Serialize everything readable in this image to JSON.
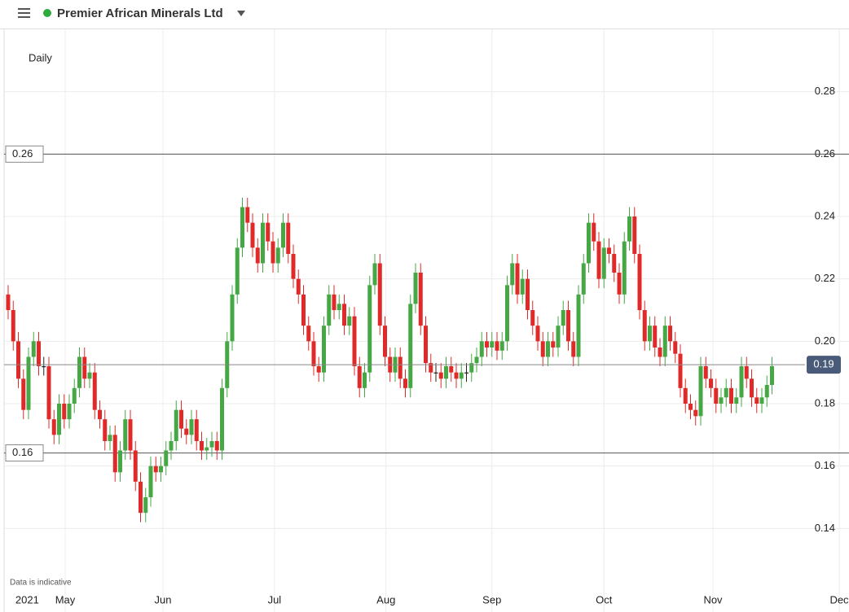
{
  "header": {
    "title": "Premier African Minerals Ltd"
  },
  "chart_data": {
    "type": "candlestick",
    "annotations": [
      "Daily",
      "Data is indicative"
    ],
    "up_color": "#45a845",
    "down_color": "#e02a2a",
    "flat_color": "#222222",
    "grid": true,
    "ylim": [
      0.12,
      0.3
    ],
    "yticks": [
      0.14,
      0.16,
      0.18,
      {
        "value": 0.2,
        "label": "0.20"
      },
      0.22,
      0.24,
      0.26,
      0.28
    ],
    "xlim": [
      -0.8,
      164
    ],
    "xticks": [
      {
        "value": 0.3,
        "label": "2021"
      },
      {
        "value": 11.2,
        "label": "May"
      },
      {
        "value": 30.4,
        "label": "Jun"
      },
      {
        "value": 52.3,
        "label": "Jul"
      },
      {
        "value": 74.2,
        "label": "Aug"
      },
      {
        "value": 95,
        "label": "Sep"
      },
      {
        "value": 117,
        "label": "Oct"
      },
      {
        "value": 138.4,
        "label": "Nov"
      },
      {
        "value": 163.2,
        "label": "Dec"
      }
    ],
    "levels": [
      {
        "value": 0.26,
        "label": "0.26"
      },
      {
        "value": 0.1642,
        "label": "0.16"
      }
    ],
    "last_price": {
      "value": 0.1925,
      "label": "0.19"
    },
    "open": [
      0.215,
      0.21,
      0.2,
      0.188,
      0.178,
      0.195,
      0.2,
      0.192,
      0.192,
      0.175,
      0.17,
      0.18,
      0.175,
      0.18,
      0.185,
      0.195,
      0.188,
      0.19,
      0.178,
      0.175,
      0.168,
      0.17,
      0.158,
      0.165,
      0.175,
      0.165,
      0.155,
      0.145,
      0.15,
      0.16,
      0.158,
      0.16,
      0.165,
      0.168,
      0.178,
      0.172,
      0.17,
      0.175,
      0.168,
      0.165,
      0.166,
      0.168,
      0.165,
      0.185,
      0.2,
      0.215,
      0.23,
      0.243,
      0.238,
      0.23,
      0.225,
      0.238,
      0.232,
      0.225,
      0.23,
      0.238,
      0.228,
      0.22,
      0.215,
      0.205,
      0.2,
      0.192,
      0.19,
      0.205,
      0.215,
      0.21,
      0.212,
      0.205,
      0.208,
      0.192,
      0.185,
      0.19,
      0.218,
      0.225,
      0.205,
      0.195,
      0.19,
      0.195,
      0.188,
      0.185,
      0.212,
      0.222,
      0.205,
      0.193,
      0.19,
      0.19,
      0.188,
      0.192,
      0.19,
      0.188,
      0.19,
      0.19,
      0.193,
      0.195,
      0.2,
      0.198,
      0.2,
      0.197,
      0.2,
      0.218,
      0.225,
      0.215,
      0.22,
      0.21,
      0.205,
      0.2,
      0.195,
      0.2,
      0.198,
      0.205,
      0.21,
      0.2,
      0.195,
      0.215,
      0.225,
      0.238,
      0.232,
      0.22,
      0.23,
      0.228,
      0.222,
      0.215,
      0.232,
      0.24,
      0.228,
      0.21,
      0.2,
      0.205,
      0.198,
      0.195,
      0.205,
      0.2,
      0.196,
      0.185,
      0.18,
      0.178,
      0.176,
      0.192,
      0.188,
      0.185,
      0.18,
      0.182,
      0.185,
      0.18,
      0.182,
      0.192,
      0.188,
      0.182,
      0.18,
      0.182,
      0.186
    ],
    "high": [
      0.218,
      0.213,
      0.203,
      0.191,
      0.198,
      0.203,
      0.203,
      0.195,
      0.195,
      0.178,
      0.183,
      0.183,
      0.183,
      0.188,
      0.198,
      0.198,
      0.193,
      0.193,
      0.181,
      0.178,
      0.173,
      0.173,
      0.168,
      0.178,
      0.178,
      0.168,
      0.158,
      0.153,
      0.163,
      0.163,
      0.163,
      0.168,
      0.171,
      0.181,
      0.181,
      0.175,
      0.178,
      0.178,
      0.171,
      0.169,
      0.171,
      0.171,
      0.188,
      0.203,
      0.218,
      0.233,
      0.246,
      0.246,
      0.241,
      0.233,
      0.241,
      0.241,
      0.235,
      0.233,
      0.241,
      0.241,
      0.231,
      0.223,
      0.218,
      0.208,
      0.203,
      0.195,
      0.208,
      0.218,
      0.218,
      0.215,
      0.215,
      0.211,
      0.211,
      0.195,
      0.193,
      0.221,
      0.228,
      0.228,
      0.208,
      0.198,
      0.198,
      0.198,
      0.191,
      0.215,
      0.225,
      0.225,
      0.208,
      0.196,
      0.193,
      0.193,
      0.195,
      0.195,
      0.193,
      0.193,
      0.193,
      0.196,
      0.198,
      0.203,
      0.203,
      0.203,
      0.203,
      0.203,
      0.221,
      0.228,
      0.228,
      0.223,
      0.223,
      0.213,
      0.208,
      0.203,
      0.203,
      0.203,
      0.208,
      0.213,
      0.213,
      0.203,
      0.218,
      0.228,
      0.241,
      0.241,
      0.235,
      0.233,
      0.233,
      0.231,
      0.225,
      0.235,
      0.243,
      0.243,
      0.231,
      0.213,
      0.208,
      0.208,
      0.201,
      0.208,
      0.208,
      0.203,
      0.199,
      0.188,
      0.183,
      0.181,
      0.195,
      0.195,
      0.191,
      0.188,
      0.185,
      0.188,
      0.188,
      0.185,
      0.195,
      0.195,
      0.191,
      0.185,
      0.185,
      0.189,
      0.195
    ],
    "low": [
      0.207,
      0.197,
      0.185,
      0.175,
      0.175,
      0.192,
      0.189,
      0.189,
      0.172,
      0.167,
      0.167,
      0.172,
      0.172,
      0.177,
      0.182,
      0.185,
      0.185,
      0.175,
      0.172,
      0.165,
      0.165,
      0.155,
      0.155,
      0.162,
      0.162,
      0.152,
      0.142,
      0.142,
      0.147,
      0.155,
      0.155,
      0.157,
      0.162,
      0.165,
      0.169,
      0.167,
      0.167,
      0.165,
      0.162,
      0.162,
      0.163,
      0.162,
      0.162,
      0.182,
      0.197,
      0.212,
      0.227,
      0.235,
      0.227,
      0.222,
      0.222,
      0.229,
      0.222,
      0.222,
      0.227,
      0.225,
      0.217,
      0.212,
      0.202,
      0.197,
      0.189,
      0.187,
      0.187,
      0.202,
      0.207,
      0.207,
      0.202,
      0.202,
      0.189,
      0.182,
      0.182,
      0.187,
      0.215,
      0.202,
      0.192,
      0.187,
      0.187,
      0.185,
      0.182,
      0.182,
      0.209,
      0.202,
      0.19,
      0.187,
      0.187,
      0.185,
      0.185,
      0.187,
      0.185,
      0.185,
      0.187,
      0.187,
      0.19,
      0.192,
      0.195,
      0.195,
      0.194,
      0.194,
      0.197,
      0.215,
      0.212,
      0.212,
      0.207,
      0.202,
      0.197,
      0.192,
      0.192,
      0.195,
      0.195,
      0.202,
      0.197,
      0.192,
      0.192,
      0.212,
      0.222,
      0.229,
      0.217,
      0.217,
      0.225,
      0.219,
      0.212,
      0.212,
      0.229,
      0.225,
      0.207,
      0.197,
      0.197,
      0.195,
      0.192,
      0.192,
      0.197,
      0.193,
      0.182,
      0.177,
      0.175,
      0.173,
      0.173,
      0.185,
      0.182,
      0.177,
      0.177,
      0.179,
      0.177,
      0.177,
      0.179,
      0.185,
      0.179,
      0.177,
      0.177,
      0.179,
      0.183
    ],
    "close": [
      0.21,
      0.2,
      0.188,
      0.178,
      0.195,
      0.2,
      0.192,
      0.192,
      0.175,
      0.17,
      0.18,
      0.175,
      0.18,
      0.185,
      0.195,
      0.188,
      0.19,
      0.178,
      0.175,
      0.168,
      0.17,
      0.158,
      0.165,
      0.175,
      0.165,
      0.155,
      0.145,
      0.15,
      0.16,
      0.158,
      0.16,
      0.165,
      0.168,
      0.178,
      0.172,
      0.17,
      0.175,
      0.168,
      0.165,
      0.166,
      0.168,
      0.165,
      0.185,
      0.2,
      0.215,
      0.23,
      0.243,
      0.238,
      0.23,
      0.225,
      0.238,
      0.232,
      0.225,
      0.23,
      0.238,
      0.228,
      0.22,
      0.215,
      0.205,
      0.2,
      0.192,
      0.19,
      0.205,
      0.215,
      0.21,
      0.212,
      0.205,
      0.208,
      0.192,
      0.185,
      0.19,
      0.218,
      0.225,
      0.205,
      0.195,
      0.19,
      0.195,
      0.188,
      0.185,
      0.212,
      0.222,
      0.205,
      0.193,
      0.19,
      0.19,
      0.188,
      0.192,
      0.19,
      0.188,
      0.19,
      0.19,
      0.193,
      0.195,
      0.2,
      0.198,
      0.2,
      0.197,
      0.2,
      0.218,
      0.225,
      0.215,
      0.22,
      0.21,
      0.205,
      0.2,
      0.195,
      0.2,
      0.198,
      0.205,
      0.21,
      0.2,
      0.195,
      0.215,
      0.225,
      0.238,
      0.232,
      0.22,
      0.23,
      0.228,
      0.222,
      0.215,
      0.232,
      0.24,
      0.228,
      0.21,
      0.2,
      0.205,
      0.198,
      0.195,
      0.205,
      0.2,
      0.196,
      0.185,
      0.18,
      0.178,
      0.176,
      0.192,
      0.188,
      0.185,
      0.18,
      0.182,
      0.185,
      0.18,
      0.182,
      0.192,
      0.188,
      0.182,
      0.18,
      0.182,
      0.186,
      0.192
    ]
  }
}
